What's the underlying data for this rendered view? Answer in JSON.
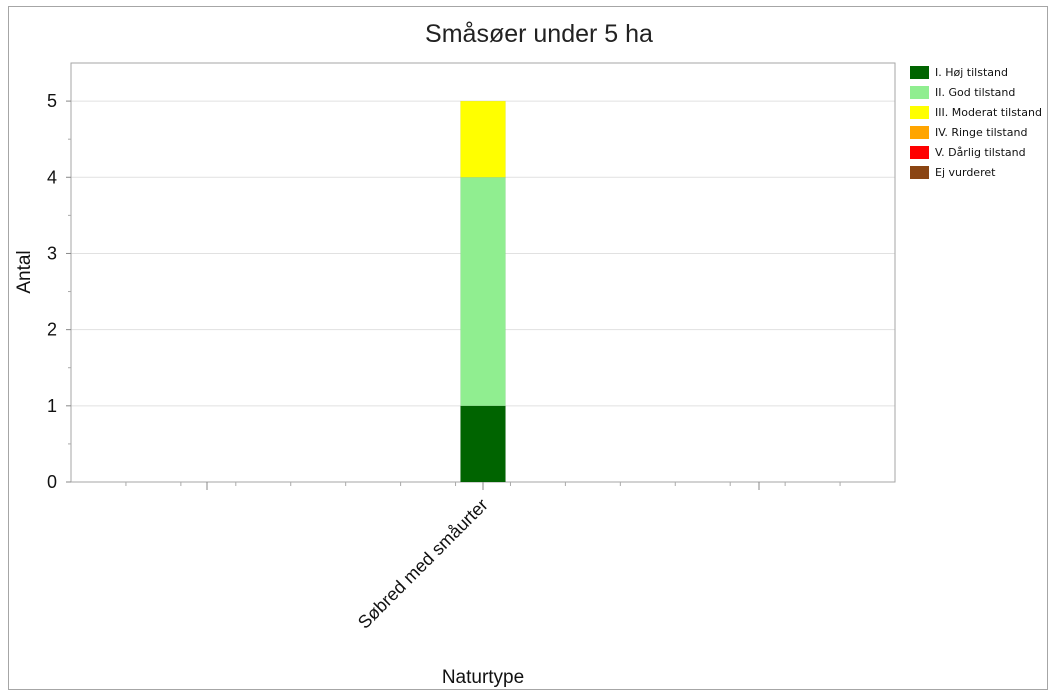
{
  "chart_data": {
    "type": "bar",
    "stacked": true,
    "title": "Småsøer under 5 ha",
    "xlabel": "Naturtype",
    "ylabel": "Antal",
    "ylim": [
      0,
      5.5
    ],
    "yticks": [
      0,
      1,
      2,
      3,
      4,
      5
    ],
    "grid": true,
    "legend_position": "right",
    "categories": [
      "Søbred med småurter"
    ],
    "series": [
      {
        "name": "I. Høj tilstand",
        "color": "#006400",
        "values": [
          1
        ]
      },
      {
        "name": "II. God tilstand",
        "color": "#90ee90",
        "values": [
          3
        ]
      },
      {
        "name": "III. Moderat tilstand",
        "color": "#ffff00",
        "values": [
          1
        ]
      },
      {
        "name": "IV. Ringe tilstand",
        "color": "#ffa500",
        "values": [
          0
        ]
      },
      {
        "name": "V. Dårlig tilstand",
        "color": "#ff0000",
        "values": [
          0
        ]
      },
      {
        "name": "Ej vurderet",
        "color": "#8b4513",
        "values": [
          0
        ]
      }
    ]
  }
}
